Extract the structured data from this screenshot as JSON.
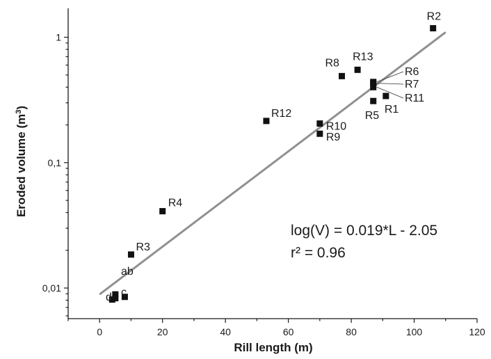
{
  "chart_data": {
    "type": "scatter",
    "xlabel": "Rill length (m)",
    "ylabel_main": "Eroded volume (m",
    "ylabel_sup": "3",
    "ylabel_end": ")",
    "xlim": [
      -10,
      120
    ],
    "ylim": [
      0.0057,
      1.7
    ],
    "yscale": "log",
    "grid": false,
    "x_ticks": [
      0,
      20,
      40,
      60,
      80,
      100,
      120
    ],
    "x_tick_labels": [
      "0",
      "20",
      "40",
      "60",
      "80",
      "100",
      "120"
    ],
    "y_ticks": [
      0.01,
      0.1,
      1
    ],
    "y_tick_labels": [
      "0,01",
      "0,1",
      "1"
    ],
    "points": [
      {
        "label": "R2",
        "x": 106,
        "y": 1.18
      },
      {
        "label": "R13",
        "x": 82,
        "y": 0.55
      },
      {
        "label": "R8",
        "x": 77,
        "y": 0.49
      },
      {
        "label": "R6",
        "x": 87,
        "y": 0.44
      },
      {
        "label": "R7",
        "x": 87,
        "y": 0.43
      },
      {
        "label": "R11",
        "x": 87,
        "y": 0.4
      },
      {
        "label": "R1",
        "x": 91,
        "y": 0.34
      },
      {
        "label": "R5",
        "x": 87,
        "y": 0.31
      },
      {
        "label": "R12",
        "x": 53,
        "y": 0.215
      },
      {
        "label": "R10",
        "x": 70,
        "y": 0.205
      },
      {
        "label": "R9",
        "x": 70,
        "y": 0.17
      },
      {
        "label": "R4",
        "x": 20,
        "y": 0.041
      },
      {
        "label": "R3",
        "x": 10,
        "y": 0.0185
      },
      {
        "label": "",
        "x": 5,
        "y": 0.0089
      },
      {
        "label": "",
        "x": 8,
        "y": 0.0085
      },
      {
        "label": "",
        "x": 4,
        "y": 0.0081
      },
      {
        "label": "",
        "x": 5,
        "y": 0.0083
      }
    ],
    "cluster_labels": [
      "ab",
      "c",
      "d"
    ],
    "fit_line": {
      "slope": 0.019,
      "intercept": -2.05,
      "x_range": [
        0,
        110
      ],
      "color": "#909090"
    },
    "equation": "log(V) = 0.019*L - 2.05",
    "r_squared": "r² = 0.96",
    "marker_color": "#111111"
  }
}
